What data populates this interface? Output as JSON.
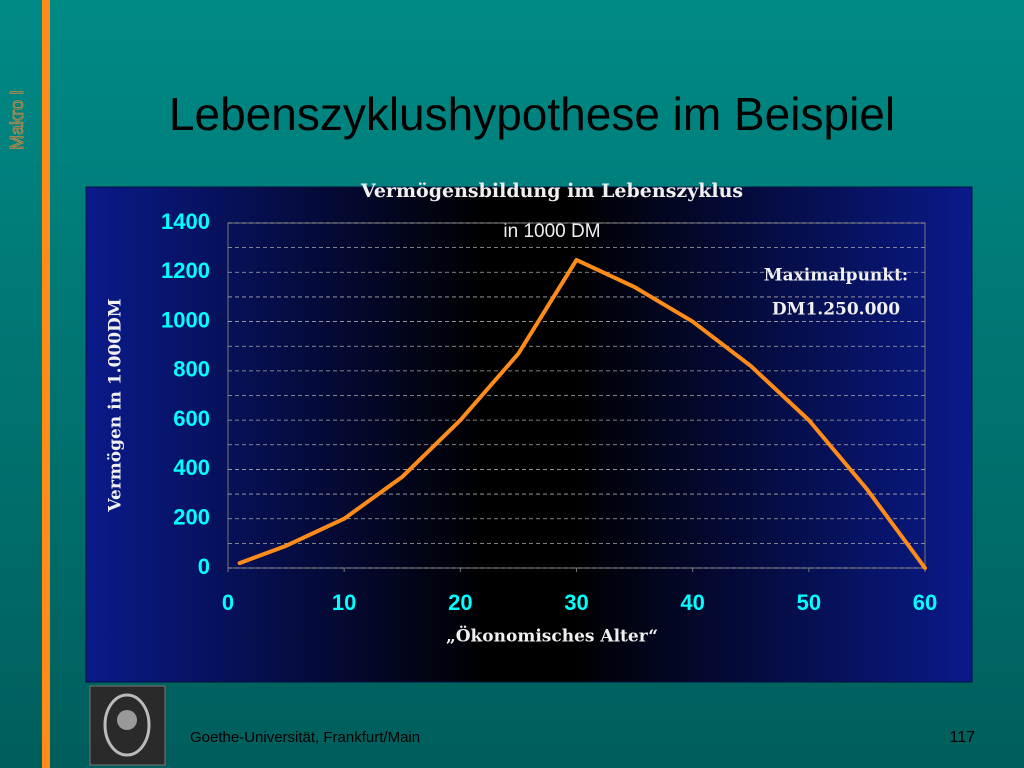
{
  "slide": {
    "title": "Lebenszyklushypothese im Beispiel",
    "side_label": "Makro I",
    "footer": "Goethe-Universität, Frankfurt/Main",
    "page_number": "117"
  },
  "chart_data": {
    "type": "line",
    "title": "Vermögensbildung im Lebenszyklus",
    "subtitle": "in 1000 DM",
    "annotation": [
      "Maximalpunkt:",
      "DM1.250.000"
    ],
    "x_label": "„Ökonomisches Alter“",
    "y_label": "Vermögen in 1.000DM",
    "x": [
      1,
      5,
      10,
      15,
      20,
      25,
      30,
      35,
      40,
      45,
      50,
      55,
      60
    ],
    "values": [
      20,
      90,
      200,
      370,
      600,
      870,
      1250,
      1140,
      1000,
      820,
      600,
      320,
      0
    ],
    "color": "#ff8c1a",
    "xlim": [
      0,
      60
    ],
    "xticks": [
      0,
      10,
      20,
      30,
      40,
      50,
      60
    ],
    "ylim": [
      0,
      1400
    ],
    "yticks": [
      0,
      200,
      400,
      600,
      800,
      1000,
      1200,
      1400
    ],
    "minor_grid": [
      100,
      300,
      500,
      700,
      900,
      1100,
      1300
    ],
    "grid": true
  }
}
